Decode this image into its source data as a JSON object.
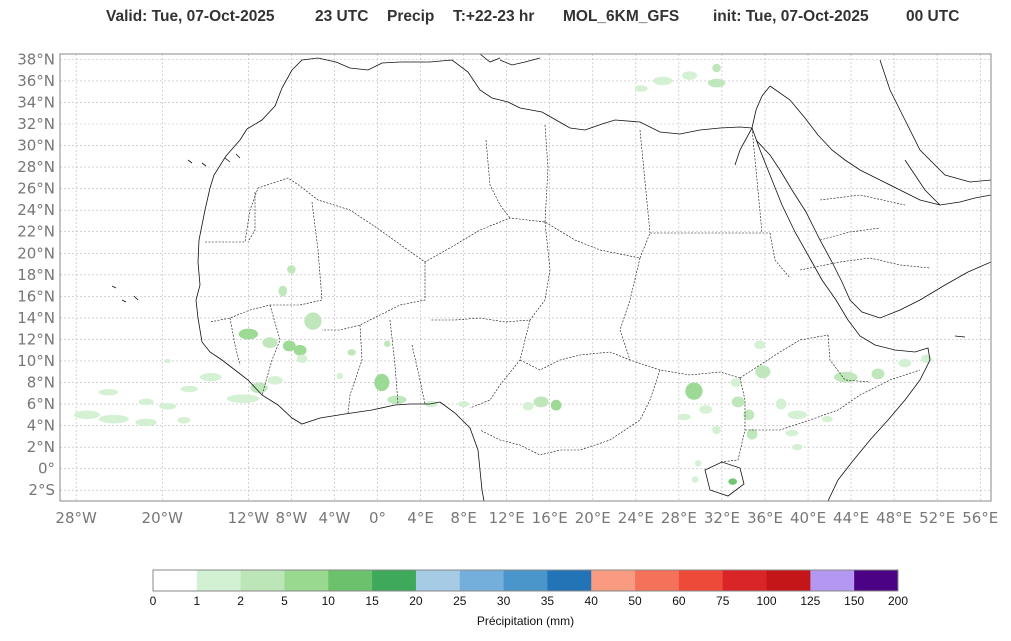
{
  "title": {
    "valid": "Valid: Tue, 07-Oct-2025",
    "hour": "23 UTC",
    "field": "Precip",
    "lead": "T:+22-23 hr",
    "model": "MOL_6KM_GFS",
    "init": "init: Tue, 07-Oct-2025",
    "init_hour": "00 UTC"
  },
  "map": {
    "lon_range": [
      -29.5,
      57
    ],
    "lat_range": [
      -3,
      38.5
    ],
    "lat_ticks": [
      "38°N",
      "36°N",
      "34°N",
      "32°N",
      "30°N",
      "28°N",
      "26°N",
      "24°N",
      "22°N",
      "20°N",
      "18°N",
      "16°N",
      "14°N",
      "12°N",
      "10°N",
      "8°N",
      "6°N",
      "4°N",
      "2°N",
      "0°",
      "2°S"
    ],
    "lon_ticks": [
      "28°W",
      "20°W",
      "12°W",
      "8°W",
      "4°W",
      "0°",
      "4°E",
      "8°E",
      "12°E",
      "16°E",
      "20°E",
      "24°E",
      "28°E",
      "32°E",
      "36°E",
      "40°E",
      "44°E",
      "48°E",
      "52°E",
      "56°E"
    ],
    "gridlines": true
  },
  "colorbar": {
    "title": "Précipitation (mm)",
    "levels": [
      "0",
      "1",
      "2",
      "5",
      "10",
      "15",
      "20",
      "25",
      "30",
      "35",
      "40",
      "50",
      "60",
      "75",
      "100",
      "125",
      "150",
      "200"
    ],
    "colors": [
      "#ffffff",
      "#d2f0d2",
      "#bde6b8",
      "#98d88f",
      "#6cc26c",
      "#3fa95b",
      "#a5cbe5",
      "#74afdc",
      "#4a96cb",
      "#2373b7",
      "#f99b80",
      "#f5725a",
      "#ed4a3a",
      "#d92528",
      "#c41518",
      "#b497f0",
      "#4b0285"
    ]
  }
}
